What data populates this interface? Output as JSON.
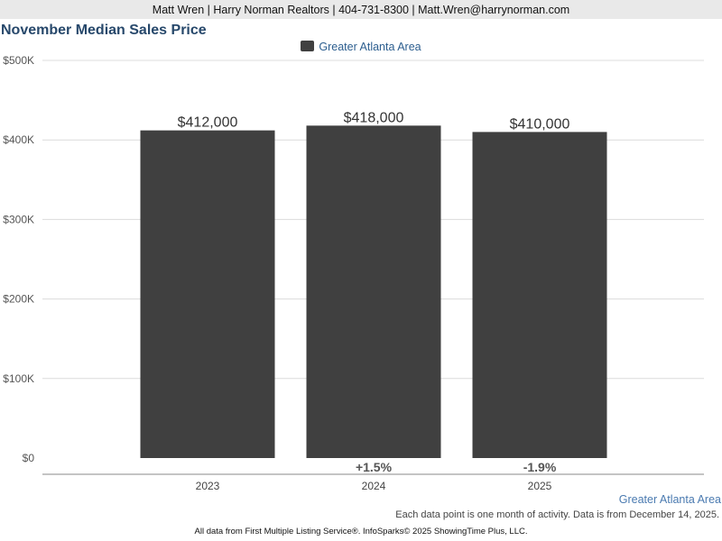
{
  "header": {
    "contact_line": "Matt Wren | Harry Norman Realtors | 404-731-8300 | Matt.Wren@harrynorman.com"
  },
  "chart_data": {
    "type": "bar",
    "title": "November Median Sales Price",
    "categories": [
      "2023",
      "2024",
      "2025"
    ],
    "series": [
      {
        "name": "Greater Atlanta Area",
        "values": [
          412000,
          418000,
          410000
        ],
        "value_labels": [
          "$412,000",
          "$418,000",
          "$410,000"
        ],
        "color": "#404040"
      }
    ],
    "change_labels": [
      "",
      "+1.5%",
      "-1.9%"
    ],
    "ylim": [
      0,
      500000
    ],
    "y_ticks": [
      0,
      100000,
      200000,
      300000,
      400000,
      500000
    ],
    "y_tick_labels": [
      "$0",
      "$100K",
      "$200K",
      "$300K",
      "$400K",
      "$500K"
    ],
    "grid": true,
    "legend_position": "top-center",
    "xlabel": "",
    "ylabel": ""
  },
  "footer": {
    "region_label": "Greater Atlanta Area",
    "note": "Each data point is one month of activity. Data is from December 14, 2025.",
    "source": "All data from First Multiple Listing Service®. InfoSparks© 2025 ShowingTime Plus, LLC."
  }
}
